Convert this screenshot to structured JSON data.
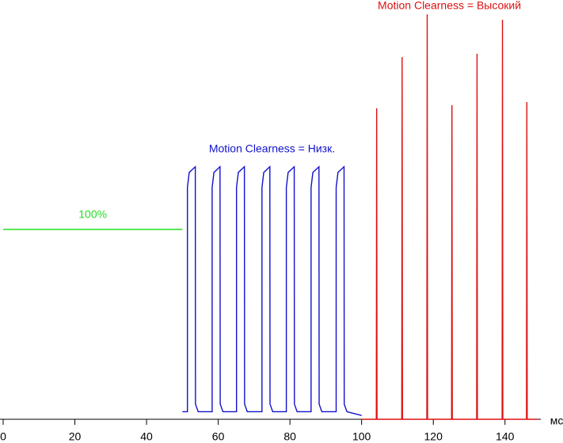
{
  "chart_data": {
    "type": "line",
    "xlabel": "мс",
    "xlim": [
      0,
      150
    ],
    "xticks": [
      0,
      20,
      40,
      60,
      80,
      100,
      120,
      140
    ],
    "ylim": [
      0,
      220
    ],
    "series": [
      {
        "name": "100%",
        "color": "#22dd22",
        "x": [
          0,
          50
        ],
        "values": [
          100,
          100
        ]
      },
      {
        "name": "Motion Clearness = Низк.",
        "color": "#1111cc",
        "x": [
          50,
          51.4,
          51.4,
          51.9,
          53.6,
          53.65,
          54.4,
          58.3,
          58.3,
          58.8,
          60.5,
          60.55,
          61.3,
          65.1,
          65.1,
          65.6,
          67.3,
          67.35,
          68.1,
          72.2,
          72.2,
          72.7,
          74.4,
          74.45,
          75.2,
          79.0,
          79.0,
          79.5,
          81.2,
          81.25,
          82.0,
          85.9,
          85.9,
          86.4,
          88.1,
          88.15,
          88.9,
          92.9,
          92.9,
          93.4,
          95.1,
          95.15,
          95.9,
          100
        ],
        "values": [
          4,
          4,
          122,
          130,
          133,
          8,
          4,
          4,
          122,
          130,
          133,
          8,
          4,
          4,
          122,
          130,
          133,
          8,
          4,
          4,
          122,
          130,
          133,
          8,
          4,
          4,
          122,
          130,
          133,
          8,
          4,
          4,
          122,
          130,
          133,
          8,
          4,
          4,
          122,
          130,
          133,
          8,
          4,
          2
        ]
      },
      {
        "name": "Motion Clearness = Высокий",
        "color": "#dd1111",
        "x": [
          100,
          104.1,
          104.2,
          104.3,
          111.2,
          111.3,
          111.4,
          118.2,
          118.3,
          118.4,
          125.1,
          125.2,
          125.3,
          132.1,
          132.2,
          132.3,
          139.2,
          139.3,
          139.4,
          146.0,
          146.1,
          146.2,
          149
        ],
        "values": [
          0,
          0,
          163.8,
          0,
          0,
          190.8,
          0,
          0,
          213.3,
          0,
          0,
          165.4,
          0,
          0,
          192.5,
          0,
          0,
          210.4,
          0,
          0,
          167.1,
          0,
          0
        ]
      }
    ]
  }
}
